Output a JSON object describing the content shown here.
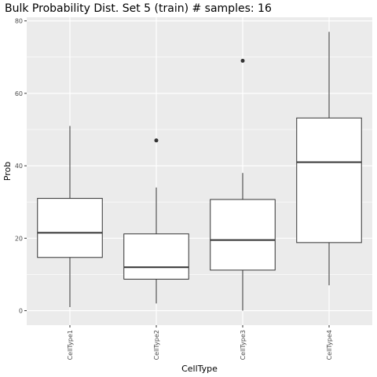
{
  "chart_data": {
    "type": "boxplot",
    "title": "Bulk Probability Dist. Set 5 (train) # samples: 16",
    "xlabel": "CellType",
    "ylabel": "Prob",
    "ylim": [
      -4,
      81
    ],
    "y_ticks": [
      0,
      20,
      40,
      60,
      80
    ],
    "grid": true,
    "background": "#ebebeb",
    "grid_color": "#ffffff",
    "box_fill": "#ffffff",
    "line_color": "#333333",
    "categories": [
      "CellType1",
      "CellType2",
      "CellType3",
      "CellType4"
    ],
    "boxes": [
      {
        "category": "CellType1",
        "min": 1,
        "q1": 14.7,
        "median": 21.5,
        "q3": 31,
        "max": 51,
        "outliers": []
      },
      {
        "category": "CellType2",
        "min": 2,
        "q1": 8.7,
        "median": 12,
        "q3": 21.2,
        "max": 34,
        "outliers": [
          47
        ]
      },
      {
        "category": "CellType3",
        "min": 0,
        "q1": 11.2,
        "median": 19.5,
        "q3": 30.7,
        "max": 38,
        "outliers": [
          69
        ]
      },
      {
        "category": "CellType4",
        "min": 7,
        "q1": 18.8,
        "median": 41,
        "q3": 53.2,
        "max": 77,
        "outliers": []
      }
    ]
  }
}
